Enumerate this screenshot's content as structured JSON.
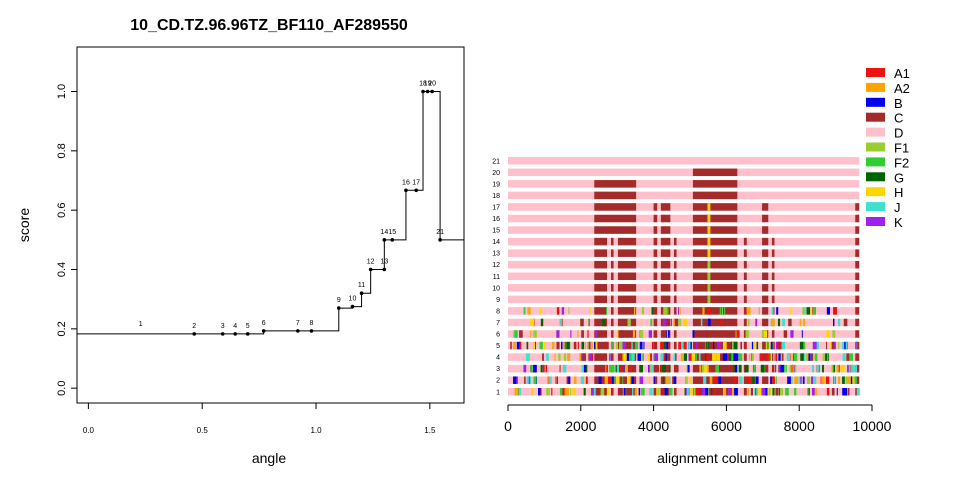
{
  "chart_data": [
    {
      "type": "line",
      "title": "10_CD.TZ.96.96TZ_BF110_AF289550",
      "xlabel": "angle",
      "ylabel": "score",
      "xlim": [
        -0.05,
        1.65
      ],
      "ylim": [
        -0.05,
        1.15
      ],
      "xticks": [
        "0.0",
        "0.5",
        "1.0",
        "1.5"
      ],
      "xtick_values": [
        0,
        0.5,
        1.0,
        1.5
      ],
      "yticks": [
        "0.0",
        "0.2",
        "0.4",
        "0.6",
        "0.8",
        "1.0"
      ],
      "ytick_values": [
        0,
        0.2,
        0.4,
        0.6,
        0.8,
        1.0
      ],
      "start": {
        "x": -0.05,
        "y": 0.183
      },
      "end": {
        "x": 1.65,
        "y": 0.5
      },
      "points": [
        {
          "label": "1",
          "x": 0.23,
          "y": 0.19,
          "marker": false
        },
        {
          "label": "2",
          "x": 0.465,
          "y": 0.183,
          "marker": true
        },
        {
          "label": "3",
          "x": 0.59,
          "y": 0.183,
          "marker": true
        },
        {
          "label": "4",
          "x": 0.645,
          "y": 0.183,
          "marker": true
        },
        {
          "label": "5",
          "x": 0.7,
          "y": 0.183,
          "marker": true
        },
        {
          "label": "6",
          "x": 0.77,
          "y": 0.193,
          "marker": true
        },
        {
          "label": "7",
          "x": 0.92,
          "y": 0.193,
          "marker": true
        },
        {
          "label": "8",
          "x": 0.98,
          "y": 0.193,
          "marker": true
        },
        {
          "label": "9",
          "x": 1.1,
          "y": 0.27,
          "marker": true
        },
        {
          "label": "10",
          "x": 1.16,
          "y": 0.275,
          "marker": true
        },
        {
          "label": "11",
          "x": 1.2,
          "y": 0.32,
          "marker": true
        },
        {
          "label": "12",
          "x": 1.24,
          "y": 0.4,
          "marker": true
        },
        {
          "label": "13",
          "x": 1.3,
          "y": 0.4,
          "marker": true
        },
        {
          "label": "14",
          "x": 1.3,
          "y": 0.5,
          "marker": true
        },
        {
          "label": "15",
          "x": 1.335,
          "y": 0.5,
          "marker": true
        },
        {
          "label": "16",
          "x": 1.395,
          "y": 0.667,
          "marker": true
        },
        {
          "label": "17",
          "x": 1.44,
          "y": 0.667,
          "marker": true
        },
        {
          "label": "18",
          "x": 1.47,
          "y": 1.0,
          "marker": true
        },
        {
          "label": "19",
          "x": 1.49,
          "y": 1.0,
          "marker": true
        },
        {
          "label": "20",
          "x": 1.51,
          "y": 1.0,
          "marker": true
        },
        {
          "label": "21",
          "x": 1.545,
          "y": 0.5,
          "marker": true
        }
      ]
    },
    {
      "type": "bar",
      "orientation": "horizontal",
      "xlabel": "alignment column",
      "ylabel": "",
      "xlim": [
        0,
        10000
      ],
      "xticks": [
        "0",
        "2000",
        "4000",
        "6000",
        "8000",
        "10000"
      ],
      "xtick_values": [
        0,
        2000,
        4000,
        6000,
        8000,
        10000
      ],
      "rows": [
        "1",
        "2",
        "3",
        "4",
        "5",
        "6",
        "7",
        "8",
        "9",
        "10",
        "11",
        "12",
        "13",
        "14",
        "15",
        "16",
        "17",
        "18",
        "19",
        "20",
        "21"
      ],
      "row_end": 9650,
      "background": "D",
      "segments_row21": [],
      "segments_row20": [
        [
          5080,
          6300,
          "C"
        ]
      ],
      "segments_row19": [
        [
          2370,
          3520,
          "C"
        ],
        [
          5080,
          6300,
          "C"
        ]
      ],
      "segments_upper": [
        [
          2370,
          3520,
          "C"
        ],
        [
          4000,
          4100,
          "C"
        ],
        [
          4200,
          4460,
          "C"
        ],
        [
          5080,
          6300,
          "C"
        ],
        [
          6980,
          7150,
          "C"
        ],
        [
          9540,
          9650,
          "C"
        ]
      ],
      "segments_middle": [
        [
          2370,
          2720,
          "C"
        ],
        [
          2830,
          2900,
          "C"
        ],
        [
          3020,
          3520,
          "C"
        ],
        [
          4000,
          4100,
          "C"
        ],
        [
          4200,
          4460,
          "C"
        ],
        [
          4560,
          4630,
          "C"
        ],
        [
          5080,
          6300,
          "C"
        ],
        [
          6480,
          6560,
          "C"
        ],
        [
          6980,
          7150,
          "C"
        ],
        [
          7250,
          7320,
          "C"
        ],
        [
          9540,
          9650,
          "C"
        ]
      ],
      "orange_marker": [
        5480,
        5560,
        "H"
      ],
      "green_marker": [
        5480,
        5560,
        "F1"
      ],
      "legend": [
        {
          "label": "A1",
          "color": "#ee1111"
        },
        {
          "label": "A2",
          "color": "#ffa500"
        },
        {
          "label": "B",
          "color": "#0000ee"
        },
        {
          "label": "C",
          "color": "#a52a2a"
        },
        {
          "label": "D",
          "color": "#ffc0cb"
        },
        {
          "label": "F1",
          "color": "#9acd32"
        },
        {
          "label": "F2",
          "color": "#32cd32"
        },
        {
          "label": "G",
          "color": "#006400"
        },
        {
          "label": "H",
          "color": "#ffd700"
        },
        {
          "label": "J",
          "color": "#40e0d0"
        },
        {
          "label": "K",
          "color": "#a020f0"
        }
      ]
    }
  ]
}
